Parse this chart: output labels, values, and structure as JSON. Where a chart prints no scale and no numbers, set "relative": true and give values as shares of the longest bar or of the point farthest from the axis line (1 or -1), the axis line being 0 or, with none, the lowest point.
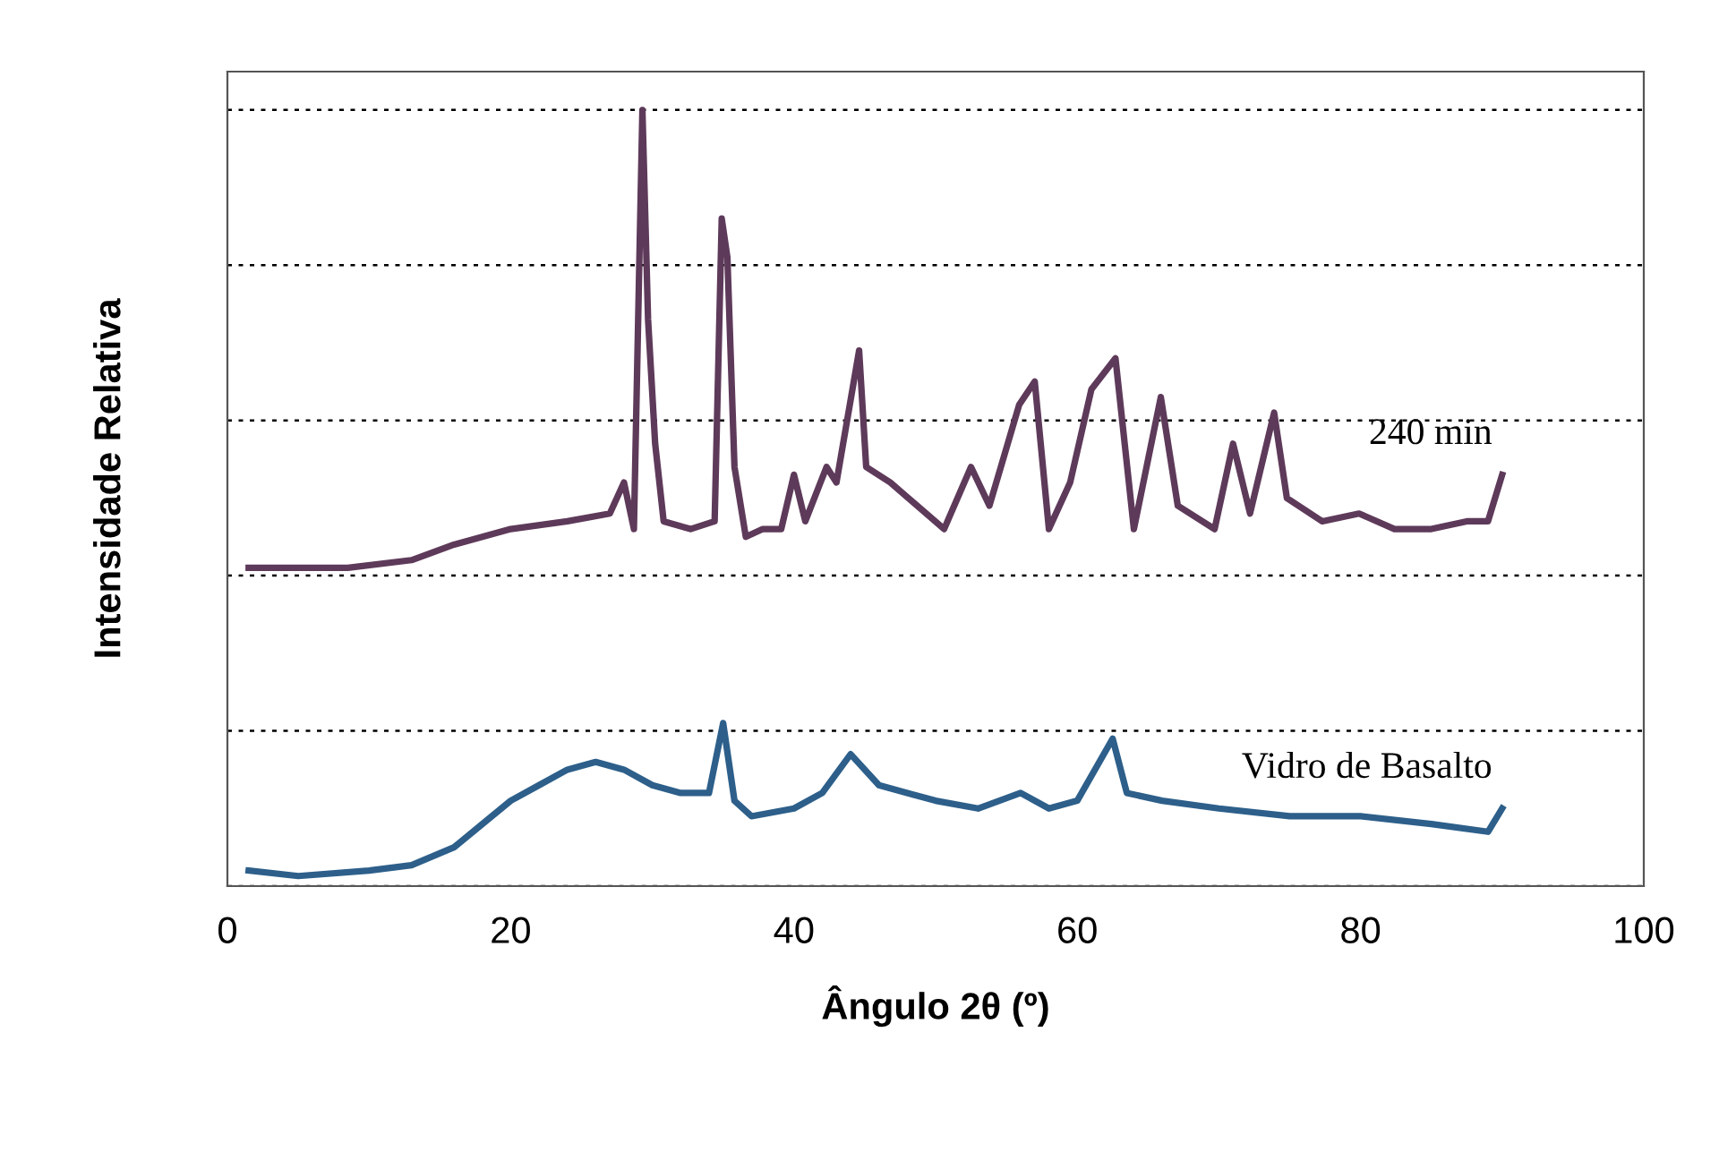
{
  "chart_data": {
    "type": "line",
    "xlabel": "Ângulo 2θ (º)",
    "ylabel": "Intensidade Relativa",
    "relative": true,
    "xlim": [
      0,
      100
    ],
    "xticks": [
      0,
      20,
      40,
      60,
      80,
      100
    ],
    "grid": "y",
    "tick_labels": "x",
    "legend": false,
    "series": [
      {
        "name": "240 min",
        "color": "#5e3a5a",
        "x": [
          1.5,
          8.5,
          13,
          16,
          20,
          24,
          27,
          28,
          28.7,
          29.3,
          29.7,
          30.2,
          30.8,
          32.7,
          34.4,
          34.9,
          35.3,
          35.8,
          36.6,
          37.8,
          39.1,
          40,
          40.8,
          42.3,
          43,
          44.6,
          45.1,
          46.8,
          48.7,
          50.6,
          52.5,
          53.8,
          55.9,
          57,
          58,
          59.5,
          61,
          62.7,
          64,
          65.9,
          67.1,
          69.7,
          71,
          72.2,
          73.9,
          74.8,
          77.3,
          79.9,
          82.4,
          85,
          87.5,
          89,
          90
        ],
        "values": [
          0.41,
          0.41,
          0.42,
          0.44,
          0.46,
          0.47,
          0.48,
          0.52,
          0.46,
          1.0,
          0.73,
          0.57,
          0.47,
          0.46,
          0.47,
          0.86,
          0.81,
          0.54,
          0.45,
          0.46,
          0.46,
          0.53,
          0.47,
          0.54,
          0.52,
          0.69,
          0.54,
          0.52,
          0.49,
          0.46,
          0.54,
          0.49,
          0.62,
          0.65,
          0.46,
          0.52,
          0.64,
          0.68,
          0.46,
          0.63,
          0.49,
          0.46,
          0.57,
          0.48,
          0.61,
          0.5,
          0.47,
          0.48,
          0.46,
          0.46,
          0.47,
          0.47,
          0.53
        ]
      },
      {
        "name": "Vidro de Basalto",
        "color": "#2d5f8a",
        "x": [
          1.5,
          5,
          10,
          13,
          16,
          18,
          20,
          22,
          24,
          26,
          28,
          30,
          32,
          34,
          35,
          35.8,
          37,
          40,
          42,
          44,
          46,
          48,
          50,
          53,
          56,
          58,
          60,
          62.5,
          63.5,
          66,
          70,
          75,
          80,
          85,
          89,
          90
        ],
        "values": [
          0.02,
          0.013,
          0.02,
          0.027,
          0.05,
          0.08,
          0.11,
          0.13,
          0.15,
          0.16,
          0.15,
          0.13,
          0.12,
          0.12,
          0.21,
          0.11,
          0.09,
          0.1,
          0.12,
          0.17,
          0.13,
          0.12,
          0.11,
          0.1,
          0.12,
          0.1,
          0.11,
          0.19,
          0.12,
          0.11,
          0.1,
          0.09,
          0.09,
          0.08,
          0.07,
          0.1
        ]
      }
    ]
  }
}
